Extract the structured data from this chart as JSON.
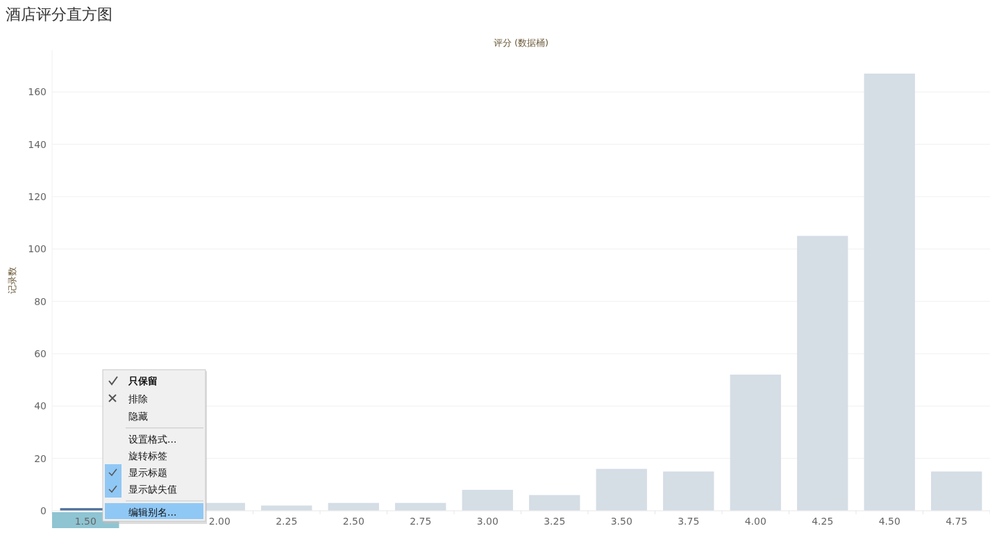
{
  "chart_data": {
    "type": "bar",
    "title": "酒店评分直方图",
    "xlabel": "评分 (数据桶)",
    "ylabel": "记录数",
    "categories": [
      "1.50",
      null,
      "2.00",
      "2.25",
      "2.50",
      "2.75",
      "3.00",
      "3.25",
      "3.50",
      "3.75",
      "4.00",
      "4.25",
      "4.50",
      "4.75"
    ],
    "values": [
      1,
      null,
      3,
      2,
      3,
      3,
      8,
      6,
      16,
      15,
      52,
      105,
      167,
      15
    ],
    "colors": [
      "#4e6f9c",
      "#d5dde5",
      "#d5dde5",
      "#d5dde5",
      "#d5dde5",
      "#d5dde5",
      "#d5dde5",
      "#d5dde5",
      "#d5dde5",
      "#d5dde5",
      "#d5dde5",
      "#d5dde5",
      "#d5dde5",
      "#d5dde5"
    ],
    "ylim": [
      0,
      176
    ],
    "yticks": [
      0,
      20,
      40,
      60,
      80,
      100,
      120,
      140,
      160
    ],
    "grid": "y",
    "annotations": [
      "只保留",
      "排除",
      "隐藏",
      "设置格式...",
      "旋转标签",
      "显示标题",
      "显示缺失值",
      "编辑别名..."
    ]
  }
}
